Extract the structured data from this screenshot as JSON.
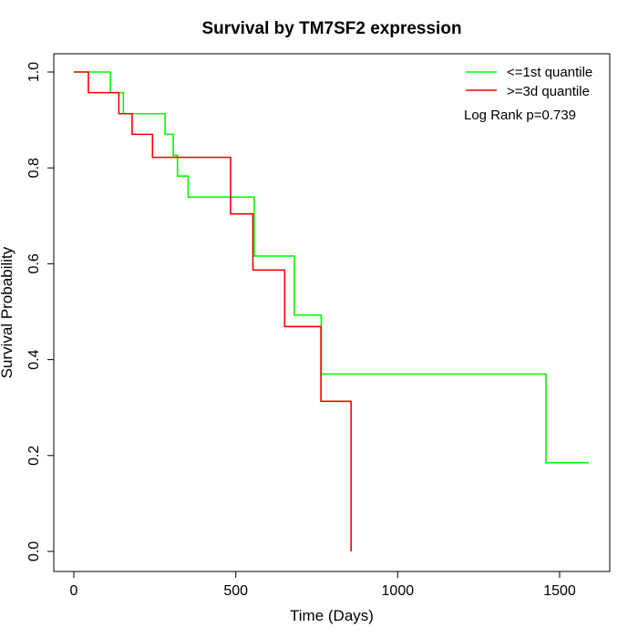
{
  "chart_data": {
    "type": "line",
    "title": "Survival by TM7SF2 expression",
    "xlabel": "Time (Days)",
    "ylabel": "Survival Probability",
    "xlim": [
      0,
      1600
    ],
    "ylim": [
      0,
      1
    ],
    "x_ticks": [
      "0",
      "500",
      "1000",
      "1500"
    ],
    "y_ticks": [
      "0.0",
      "0.2",
      "0.4",
      "0.6",
      "0.8",
      "1.0"
    ],
    "grid": false,
    "legend_position": "top-right",
    "annotation": "Log Rank p=0.739",
    "series": [
      {
        "name": "<=1st quantile",
        "color": "#00ff00",
        "step_x": [
          0,
          113,
          153,
          282,
          307,
          320,
          353,
          557,
          681,
          764,
          1458,
          1590
        ],
        "step_y": [
          1.0,
          0.957,
          0.913,
          0.87,
          0.826,
          0.783,
          0.739,
          0.616,
          0.493,
          0.37,
          0.185,
          0.185
        ]
      },
      {
        "name": ">=3d quantile",
        "color": "#ff0000",
        "step_x": [
          0,
          45,
          139,
          180,
          243,
          484,
          553,
          651,
          763,
          856
        ],
        "step_y": [
          1.0,
          0.957,
          0.913,
          0.87,
          0.822,
          0.704,
          0.587,
          0.469,
          0.313,
          0.0
        ]
      }
    ]
  }
}
